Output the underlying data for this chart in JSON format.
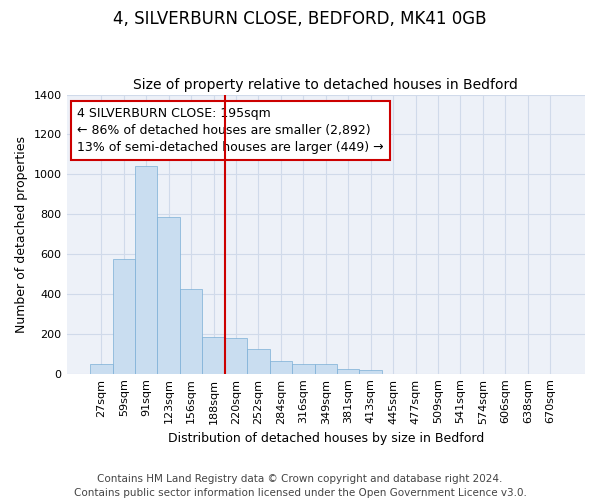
{
  "title_line1": "4, SILVERBURN CLOSE, BEDFORD, MK41 0GB",
  "title_line2": "Size of property relative to detached houses in Bedford",
  "xlabel": "Distribution of detached houses by size in Bedford",
  "ylabel": "Number of detached properties",
  "categories": [
    "27sqm",
    "59sqm",
    "91sqm",
    "123sqm",
    "156sqm",
    "188sqm",
    "220sqm",
    "252sqm",
    "284sqm",
    "316sqm",
    "349sqm",
    "381sqm",
    "413sqm",
    "445sqm",
    "477sqm",
    "509sqm",
    "541sqm",
    "574sqm",
    "606sqm",
    "638sqm",
    "670sqm"
  ],
  "values": [
    48,
    575,
    1040,
    785,
    425,
    185,
    180,
    125,
    65,
    50,
    50,
    25,
    20,
    0,
    0,
    0,
    0,
    0,
    0,
    0,
    0
  ],
  "bar_color": "#c9ddf0",
  "bar_edge_color": "#7aaed6",
  "vline_x_index": 5,
  "vline_color": "#cc0000",
  "annotation_text": "4 SILVERBURN CLOSE: 195sqm\n← 86% of detached houses are smaller (2,892)\n13% of semi-detached houses are larger (449) →",
  "annotation_box_color": "#ffffff",
  "annotation_box_edge_color": "#cc0000",
  "ylim": [
    0,
    1400
  ],
  "yticks": [
    0,
    200,
    400,
    600,
    800,
    1000,
    1200,
    1400
  ],
  "grid_color": "#d0daea",
  "background_color": "#edf1f8",
  "footer_line1": "Contains HM Land Registry data © Crown copyright and database right 2024.",
  "footer_line2": "Contains public sector information licensed under the Open Government Licence v3.0.",
  "title_fontsize": 12,
  "subtitle_fontsize": 10,
  "axis_label_fontsize": 9,
  "tick_fontsize": 8,
  "annotation_fontsize": 9,
  "footer_fontsize": 7.5
}
